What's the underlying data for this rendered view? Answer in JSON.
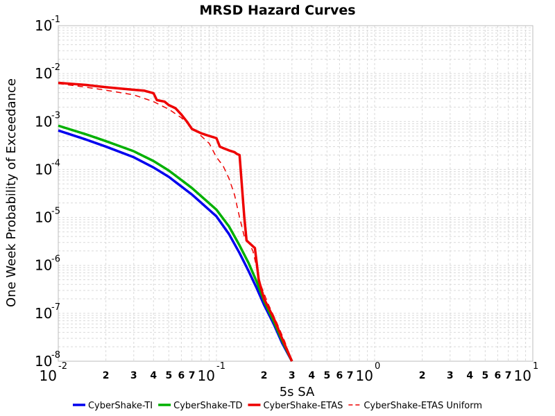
{
  "chart_data": {
    "type": "line",
    "title": "MRSD Hazard Curves",
    "xlabel": "5s SA",
    "ylabel": "One Week Probability of Exceedance",
    "x_scale": "log",
    "y_scale": "log",
    "xlim": [
      0.01,
      10
    ],
    "ylim": [
      1e-08,
      0.1
    ],
    "grid": true,
    "legend_position": "bottom",
    "x_ticks": [
      {
        "base": "10",
        "exp": "-2",
        "value": 0.01
      },
      {
        "base": "10",
        "exp": "-1",
        "value": 0.1
      },
      {
        "base": "10",
        "exp": "0",
        "value": 1
      },
      {
        "base": "10",
        "exp": "1",
        "value": 10
      }
    ],
    "x_minor_labels": [
      "2",
      "3",
      "4",
      "5",
      "6",
      "7"
    ],
    "y_ticks": [
      {
        "base": "10",
        "exp": "-1",
        "value": 0.1
      },
      {
        "base": "10",
        "exp": "-2",
        "value": 0.01
      },
      {
        "base": "10",
        "exp": "-3",
        "value": 0.001
      },
      {
        "base": "10",
        "exp": "-4",
        "value": 0.0001
      },
      {
        "base": "10",
        "exp": "-5",
        "value": 1e-05
      },
      {
        "base": "10",
        "exp": "-6",
        "value": 1e-06
      },
      {
        "base": "10",
        "exp": "-7",
        "value": 1e-07
      },
      {
        "base": "10",
        "exp": "-8",
        "value": 1e-08
      }
    ],
    "series": [
      {
        "name": "CyberShake-TI",
        "color": "#0000ee",
        "dash": "solid",
        "points": [
          [
            0.01,
            0.00065
          ],
          [
            0.015,
            0.00042
          ],
          [
            0.02,
            0.0003
          ],
          [
            0.03,
            0.00018
          ],
          [
            0.04,
            0.00011
          ],
          [
            0.05,
            7e-05
          ],
          [
            0.07,
            3e-05
          ],
          [
            0.1,
            1.05e-05
          ],
          [
            0.12,
            4.5e-06
          ],
          [
            0.14,
            1.8e-06
          ],
          [
            0.16,
            7.5e-07
          ],
          [
            0.18,
            3.3e-07
          ],
          [
            0.2,
            1.5e-07
          ],
          [
            0.23,
            6e-08
          ],
          [
            0.26,
            2.4e-08
          ],
          [
            0.3,
            1e-08
          ]
        ]
      },
      {
        "name": "CyberShake-TD",
        "color": "#00b000",
        "dash": "solid",
        "points": [
          [
            0.01,
            0.00082
          ],
          [
            0.015,
            0.00054
          ],
          [
            0.02,
            0.00039
          ],
          [
            0.03,
            0.00024
          ],
          [
            0.04,
            0.00015
          ],
          [
            0.05,
            9.5e-05
          ],
          [
            0.07,
            4.1e-05
          ],
          [
            0.1,
            1.45e-05
          ],
          [
            0.12,
            6.5e-06
          ],
          [
            0.14,
            2.6e-06
          ],
          [
            0.16,
            1.1e-06
          ],
          [
            0.18,
            4.5e-07
          ],
          [
            0.2,
            1.8e-07
          ],
          [
            0.23,
            6.8e-08
          ],
          [
            0.26,
            2.7e-08
          ],
          [
            0.3,
            1e-08
          ]
        ]
      },
      {
        "name": "CyberShake-ETAS",
        "color": "#ee0000",
        "dash": "solid",
        "points": [
          [
            0.01,
            0.0064
          ],
          [
            0.015,
            0.0058
          ],
          [
            0.02,
            0.0052
          ],
          [
            0.03,
            0.0046
          ],
          [
            0.035,
            0.0044
          ],
          [
            0.04,
            0.0039
          ],
          [
            0.042,
            0.0028
          ],
          [
            0.047,
            0.0026
          ],
          [
            0.05,
            0.0022
          ],
          [
            0.055,
            0.0019
          ],
          [
            0.06,
            0.0014
          ],
          [
            0.065,
            0.001
          ],
          [
            0.07,
            0.0007
          ],
          [
            0.08,
            0.00057
          ],
          [
            0.09,
            0.0005
          ],
          [
            0.1,
            0.00045
          ],
          [
            0.105,
            0.0003
          ],
          [
            0.11,
            0.00028
          ],
          [
            0.12,
            0.00025
          ],
          [
            0.13,
            0.00023
          ],
          [
            0.135,
            0.00021
          ],
          [
            0.14,
            0.0002
          ],
          [
            0.15,
            1e-05
          ],
          [
            0.155,
            3.3e-06
          ],
          [
            0.17,
            2.5e-06
          ],
          [
            0.175,
            2.3e-06
          ],
          [
            0.185,
            5e-07
          ],
          [
            0.2,
            2e-07
          ],
          [
            0.23,
            8e-08
          ],
          [
            0.26,
            3e-08
          ],
          [
            0.3,
            1e-08
          ]
        ]
      },
      {
        "name": "CyberShake-ETAS Uniform",
        "color": "#ee0000",
        "dash": "dashed",
        "points": [
          [
            0.01,
            0.0062
          ],
          [
            0.015,
            0.0052
          ],
          [
            0.02,
            0.0045
          ],
          [
            0.03,
            0.0036
          ],
          [
            0.04,
            0.0026
          ],
          [
            0.05,
            0.0018
          ],
          [
            0.06,
            0.0012
          ],
          [
            0.07,
            0.00075
          ],
          [
            0.08,
            0.0005
          ],
          [
            0.09,
            0.00035
          ],
          [
            0.1,
            0.00018
          ],
          [
            0.11,
            0.00012
          ],
          [
            0.12,
            6.5e-05
          ],
          [
            0.13,
            3e-05
          ],
          [
            0.14,
            1e-05
          ],
          [
            0.15,
            4e-06
          ],
          [
            0.16,
            3e-06
          ],
          [
            0.17,
            2e-06
          ],
          [
            0.19,
            4e-07
          ],
          [
            0.21,
            1.7e-07
          ],
          [
            0.24,
            6.5e-08
          ],
          [
            0.27,
            2.6e-08
          ],
          [
            0.3,
            1e-08
          ]
        ]
      }
    ]
  }
}
